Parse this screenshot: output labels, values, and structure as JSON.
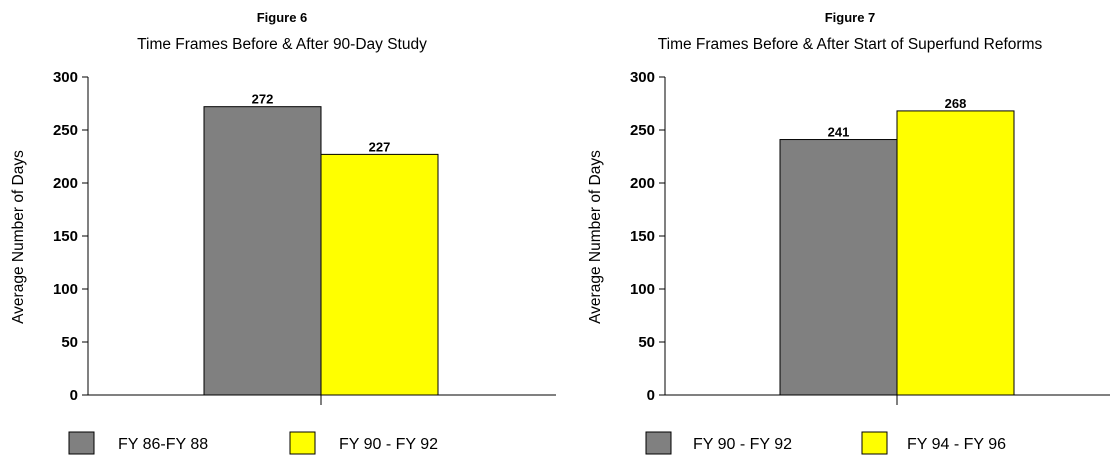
{
  "chart_data": [
    {
      "type": "bar",
      "figure": "Figure 6",
      "title": "Time Frames Before & After 90-Day Study",
      "ylabel": "Average Number of Days",
      "ylim": [
        0,
        300
      ],
      "yticks": [
        0,
        50,
        100,
        150,
        200,
        250,
        300
      ],
      "series": [
        {
          "name": "FY 86-FY 88",
          "values": [
            272
          ],
          "color": "#808080"
        },
        {
          "name": "FY 90 - FY 92",
          "values": [
            227
          ],
          "color": "#ffff00"
        }
      ],
      "data_labels": [
        "272",
        "227"
      ],
      "legend": "bottom",
      "grid": false
    },
    {
      "type": "bar",
      "figure": "Figure 7",
      "title": "Time Frames Before & After Start of Superfund Reforms",
      "ylabel": "Average Number of Days",
      "ylim": [
        0,
        300
      ],
      "yticks": [
        0,
        50,
        100,
        150,
        200,
        250,
        300
      ],
      "series": [
        {
          "name": "FY 90 - FY 92",
          "values": [
            241
          ],
          "color": "#808080"
        },
        {
          "name": "FY 94 - FY 96",
          "values": [
            268
          ],
          "color": "#ffff00"
        }
      ],
      "data_labels": [
        "241",
        "268"
      ],
      "legend": "bottom",
      "grid": false
    }
  ]
}
